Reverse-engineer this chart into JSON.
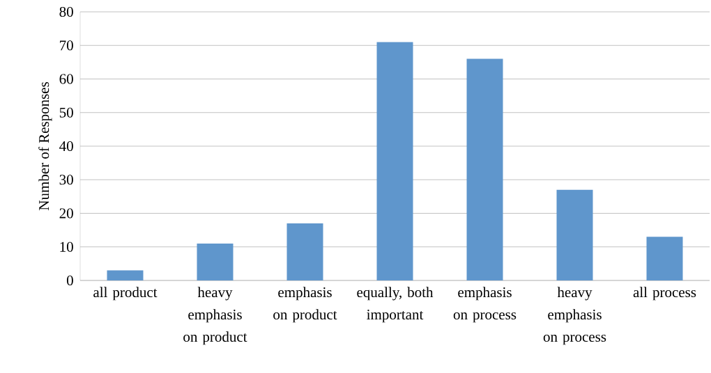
{
  "chart_data": {
    "type": "bar",
    "ylabel": "Number of Responses",
    "categories": [
      "all product",
      "heavy emphasis on product",
      "emphasis on product",
      "equally, both important",
      "emphasis on process",
      "heavy emphasis on process",
      "all process"
    ],
    "values": [
      3,
      11,
      17,
      71,
      66,
      27,
      13
    ],
    "color": "#5f96cc",
    "ylim": [
      0,
      80
    ],
    "yticks": [
      0,
      10,
      20,
      30,
      40,
      50,
      60,
      70,
      80
    ],
    "grid": "y"
  }
}
